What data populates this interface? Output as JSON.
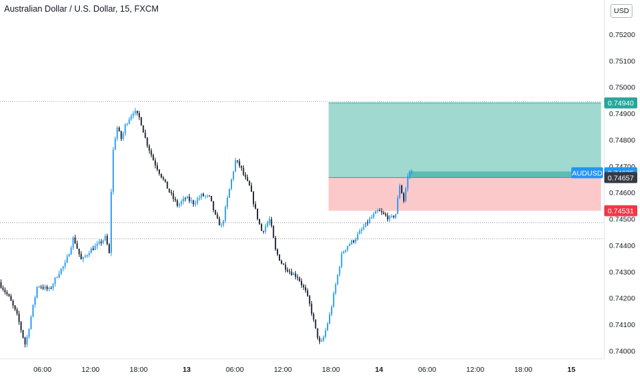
{
  "chart_data": {
    "type": "candlestick",
    "title": "Australian Dollar / U.S. Dollar, 15, FXCM",
    "currency": "USD",
    "ylim": [
      0.7397,
      0.7533
    ],
    "y_ticks": [
      "0.74000",
      "0.74100",
      "0.74200",
      "0.74300",
      "0.74400",
      "0.74500",
      "0.74600",
      "0.74700",
      "0.74800",
      "0.74900",
      "0.75000",
      "0.75100",
      "0.75200"
    ],
    "x_ticks": [
      "06:00",
      "12:00",
      "18:00",
      "13",
      "06:00",
      "12:00",
      "18:00",
      "14",
      "06:00",
      "12:00",
      "18:00",
      "15"
    ],
    "x_tick_hours": [
      6,
      12,
      18,
      24,
      30,
      36,
      42,
      48,
      54,
      60,
      66,
      72
    ],
    "xlim_hours": [
      0.7,
      76.1
    ],
    "candle_hours_per_bar": 0.25,
    "colors": {
      "up": "#2196f3",
      "down": "#131722",
      "profit_zone": "#9fd9cf",
      "loss_zone": "#fcc9cb",
      "target": "#26a69a",
      "stop": "#f23645",
      "symbol": "#2962ff",
      "entry": "#363a45"
    },
    "horizontal_lines": [
      0.74945,
      0.74486,
      0.74425
    ],
    "position": {
      "type": "long",
      "start_hour": 41.7,
      "end_hour": 75.7,
      "entry": 0.74657,
      "target": 0.7494,
      "stop": 0.74531,
      "current": 0.74675
    },
    "price_labels": [
      {
        "name": "target",
        "text": "0.74940",
        "value": 0.7494
      },
      {
        "name": "current",
        "symbol": "AUDUSD",
        "text": "0.74675",
        "value": 0.74675
      },
      {
        "name": "entry",
        "text": "0.74657",
        "value": 0.74657
      },
      {
        "name": "stop",
        "text": "0.74531",
        "value": 0.74531
      }
    ],
    "price_path": [
      [
        0.7,
        0.7426
      ],
      [
        2.0,
        0.742
      ],
      [
        3.0,
        0.7413
      ],
      [
        4.0,
        0.7402
      ],
      [
        4.7,
        0.7413
      ],
      [
        5.5,
        0.7425
      ],
      [
        7.0,
        0.7423
      ],
      [
        8.2,
        0.743
      ],
      [
        9.0,
        0.7433
      ],
      [
        10.0,
        0.7443
      ],
      [
        11.0,
        0.7434
      ],
      [
        12.0,
        0.7438
      ],
      [
        13.0,
        0.744
      ],
      [
        14.0,
        0.7443
      ],
      [
        14.5,
        0.7436
      ],
      [
        14.8,
        0.7473
      ],
      [
        15.4,
        0.7485
      ],
      [
        16.0,
        0.748
      ],
      [
        16.5,
        0.7486
      ],
      [
        17.5,
        0.7491
      ],
      [
        18.3,
        0.7488
      ],
      [
        19.0,
        0.748
      ],
      [
        20.0,
        0.7472
      ],
      [
        21.0,
        0.7466
      ],
      [
        22.0,
        0.746
      ],
      [
        23.0,
        0.7455
      ],
      [
        24.0,
        0.7458
      ],
      [
        25.0,
        0.7456
      ],
      [
        26.0,
        0.7459
      ],
      [
        27.0,
        0.7458
      ],
      [
        27.8,
        0.745
      ],
      [
        28.5,
        0.7447
      ],
      [
        29.5,
        0.7462
      ],
      [
        30.2,
        0.7472
      ],
      [
        30.8,
        0.747
      ],
      [
        31.3,
        0.7466
      ],
      [
        32.0,
        0.7462
      ],
      [
        32.8,
        0.7452
      ],
      [
        33.5,
        0.7445
      ],
      [
        34.5,
        0.745
      ],
      [
        35.2,
        0.7438
      ],
      [
        36.0,
        0.7433
      ],
      [
        37.0,
        0.743
      ],
      [
        38.0,
        0.7428
      ],
      [
        39.0,
        0.7422
      ],
      [
        39.6,
        0.7416
      ],
      [
        40.2,
        0.7408
      ],
      [
        40.8,
        0.7402
      ],
      [
        41.3,
        0.7406
      ],
      [
        42.0,
        0.7414
      ],
      [
        42.7,
        0.7425
      ],
      [
        43.5,
        0.7437
      ],
      [
        44.2,
        0.744
      ],
      [
        45.0,
        0.7442
      ],
      [
        46.0,
        0.7446
      ],
      [
        47.0,
        0.745
      ],
      [
        48.0,
        0.7453
      ],
      [
        49.0,
        0.7451
      ],
      [
        49.6,
        0.745
      ],
      [
        50.2,
        0.7452
      ],
      [
        50.7,
        0.7463
      ],
      [
        51.2,
        0.7457
      ],
      [
        51.7,
        0.7466
      ],
      [
        52.0,
        0.7468
      ]
    ]
  }
}
